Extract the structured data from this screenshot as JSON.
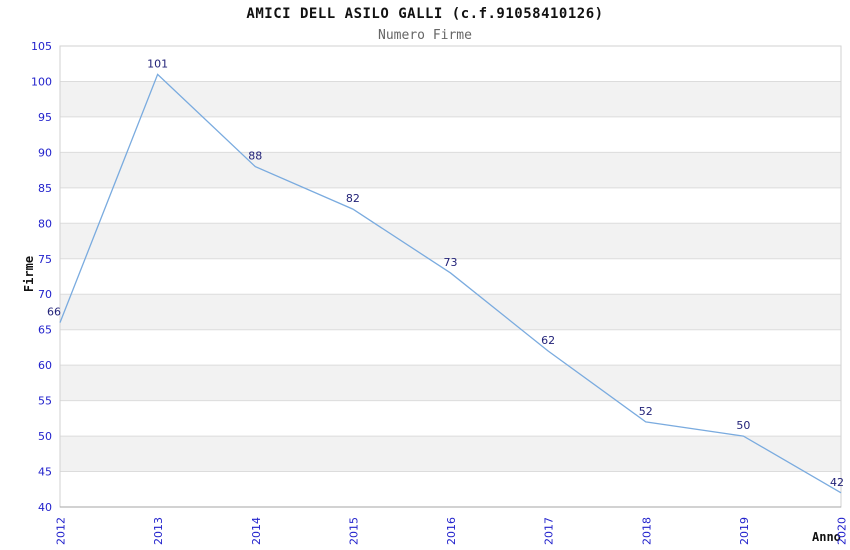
{
  "page": {
    "background": "#ffffff"
  },
  "chart_data": {
    "type": "line",
    "title": "AMICI DELL ASILO GALLI (c.f.91058410126)",
    "subtitle": "Numero Firme",
    "xlabel": "Anno",
    "ylabel": "Firme",
    "x": [
      "2012",
      "2013",
      "2014",
      "2015",
      "2016",
      "2017",
      "2018",
      "2019",
      "2020"
    ],
    "series": [
      {
        "name": "Numero Firme",
        "values": [
          66,
          101,
          88,
          82,
          73,
          62,
          52,
          50,
          42
        ]
      }
    ],
    "point_labels": [
      "66",
      "101",
      "88",
      "82",
      "73",
      "62",
      "52",
      "50",
      "42"
    ],
    "ylim": [
      40,
      105
    ],
    "ytick_step": 5,
    "yticks": [
      40,
      45,
      50,
      55,
      60,
      65,
      70,
      75,
      80,
      85,
      90,
      95,
      100,
      105
    ],
    "grid": "horizontal gridlines with alternating shaded bands",
    "legend": "none",
    "colors": {
      "line": "#7aabdf",
      "point_label": "#222278",
      "tick_label": "#2222cc",
      "grid_line": "#dcdcdc",
      "band_fill": "#f2f2f2",
      "plot_border": "#d2d2d2",
      "axis_line": "#a6a6a6",
      "title": "#111111",
      "subtitle": "#666666",
      "axis_title": "#111111"
    }
  }
}
